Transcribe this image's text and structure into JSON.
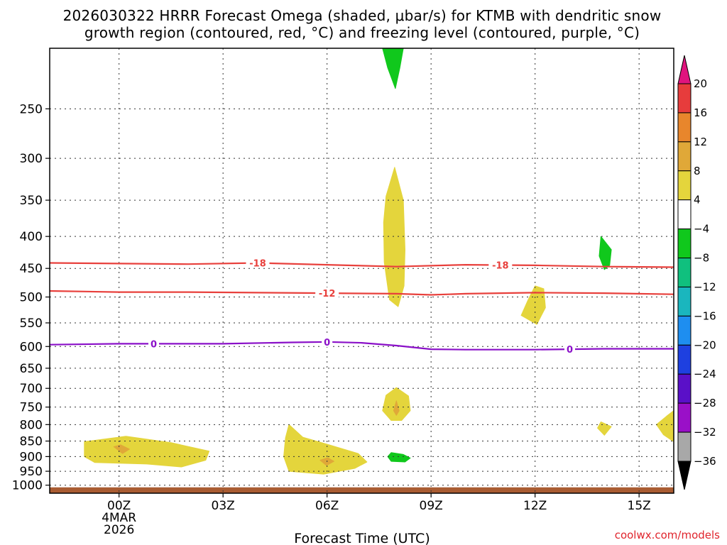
{
  "chart_data": {
    "type": "time-height-cross-section",
    "title_line1": "2026030322 HRRR Forecast Omega (shaded, μbar/s) for KTMB with dendritic snow",
    "title_line2": "growth region (contoured, red, °C) and freezing level (contoured, purple, °C)",
    "xlabel": "Forecast Time (UTC)",
    "credit": "coolwx.com/models",
    "x_range_hours": [
      -2,
      16
    ],
    "y_range_hPa": [
      200,
      1030
    ],
    "x_ticks": [
      {
        "hour": 0,
        "lines": [
          "00Z",
          "4MAR",
          "2026"
        ]
      },
      {
        "hour": 3,
        "lines": [
          "03Z"
        ]
      },
      {
        "hour": 6,
        "lines": [
          "06Z"
        ]
      },
      {
        "hour": 9,
        "lines": [
          "09Z"
        ]
      },
      {
        "hour": 12,
        "lines": [
          "12Z"
        ]
      },
      {
        "hour": 15,
        "lines": [
          "15Z"
        ]
      }
    ],
    "y_ticks": [
      {
        "p": 250,
        "label": "250"
      },
      {
        "p": 300,
        "label": "300"
      },
      {
        "p": 350,
        "label": "350"
      },
      {
        "p": 400,
        "label": "400"
      },
      {
        "p": 450,
        "label": "450"
      },
      {
        "p": 500,
        "label": "500"
      },
      {
        "p": 550,
        "label": "550"
      },
      {
        "p": 600,
        "label": "600"
      },
      {
        "p": 650,
        "label": "650"
      },
      {
        "p": 700,
        "label": "700"
      },
      {
        "p": 750,
        "label": "750"
      },
      {
        "p": 800,
        "label": "800"
      },
      {
        "p": 850,
        "label": "850"
      },
      {
        "p": 900,
        "label": "900"
      },
      {
        "p": 950,
        "label": "950"
      },
      {
        "p": 1000,
        "label": "1000"
      }
    ],
    "colorbar": {
      "bins": [
        {
          "from": 16,
          "to": 20,
          "color": "#e73c3c"
        },
        {
          "from": 12,
          "to": 16,
          "color": "#e8862c"
        },
        {
          "from": 8,
          "to": 12,
          "color": "#e0a838"
        },
        {
          "from": 4,
          "to": 8,
          "color": "#e4d53c"
        },
        {
          "from": -4,
          "to": 4,
          "color": "#ffffff"
        },
        {
          "from": -8,
          "to": -4,
          "color": "#10c81c"
        },
        {
          "from": -12,
          "to": -8,
          "color": "#10c07e"
        },
        {
          "from": -16,
          "to": -12,
          "color": "#1ab6be"
        },
        {
          "from": -20,
          "to": -16,
          "color": "#1e8ef0"
        },
        {
          "from": -24,
          "to": -20,
          "color": "#1e40e0"
        },
        {
          "from": -28,
          "to": -24,
          "color": "#5a10c8"
        },
        {
          "from": -32,
          "to": -28,
          "color": "#9a10c8"
        },
        {
          "from": -36,
          "to": -32,
          "color": "#a8a8a8"
        }
      ],
      "over_color": "#e0147e",
      "under_color": "#000000",
      "tick_labels": [
        "20",
        "16",
        "12",
        "8",
        "4",
        "−4",
        "−8",
        "−12",
        "−16",
        "−20",
        "−24",
        "−28",
        "−32",
        "−36"
      ]
    },
    "contours": [
      {
        "name": "dgz-minus18",
        "value_label": "-18",
        "color": "#e8403c",
        "points": [
          [
            -2,
            441
          ],
          [
            0,
            442
          ],
          [
            2,
            443
          ],
          [
            4,
            441
          ],
          [
            6,
            444
          ],
          [
            8,
            447
          ],
          [
            10,
            444
          ],
          [
            12,
            445
          ],
          [
            14,
            447
          ],
          [
            16,
            448
          ]
        ],
        "label_hours": [
          4,
          11
        ]
      },
      {
        "name": "dgz-minus12",
        "value_label": "-12",
        "color": "#e8403c",
        "points": [
          [
            -2,
            489
          ],
          [
            0,
            491
          ],
          [
            2,
            491
          ],
          [
            4,
            492
          ],
          [
            6,
            493
          ],
          [
            8,
            494
          ],
          [
            9,
            496
          ],
          [
            10,
            494
          ],
          [
            12,
            492
          ],
          [
            14,
            493
          ],
          [
            16,
            495
          ]
        ],
        "label_hours": [
          6
        ]
      },
      {
        "name": "freezing-level",
        "value_label": "0",
        "color": "#8a10c8",
        "points": [
          [
            -2,
            596
          ],
          [
            0,
            594
          ],
          [
            1,
            594
          ],
          [
            3,
            594
          ],
          [
            5,
            591
          ],
          [
            6,
            590
          ],
          [
            7,
            592
          ],
          [
            8,
            598
          ],
          [
            9,
            606
          ],
          [
            10,
            607
          ],
          [
            12,
            607
          ],
          [
            13,
            606
          ],
          [
            14,
            605
          ],
          [
            16,
            605
          ]
        ],
        "label_hours": [
          1,
          6,
          13
        ]
      }
    ],
    "omega_regions": [
      {
        "name": "green-top",
        "color": "#10c81c",
        "points": [
          [
            7.6,
            200
          ],
          [
            8.2,
            200
          ],
          [
            8.1,
            215
          ],
          [
            7.97,
            232
          ],
          [
            7.75,
            215
          ]
        ]
      },
      {
        "name": "yellow-mid-column",
        "color": "#e4d53c",
        "points": [
          [
            7.95,
            310
          ],
          [
            8.2,
            350
          ],
          [
            8.25,
            420
          ],
          [
            8.22,
            480
          ],
          [
            8.05,
            518
          ],
          [
            7.8,
            505
          ],
          [
            7.65,
            440
          ],
          [
            7.63,
            380
          ],
          [
            7.7,
            345
          ]
        ]
      },
      {
        "name": "green-right-upper",
        "color": "#10c81c",
        "points": [
          [
            13.9,
            400
          ],
          [
            14.2,
            420
          ],
          [
            14.15,
            445
          ],
          [
            14.0,
            452
          ],
          [
            13.85,
            430
          ]
        ]
      },
      {
        "name": "yellow-right-mid",
        "color": "#e4d53c",
        "points": [
          [
            12.0,
            480
          ],
          [
            12.25,
            485
          ],
          [
            12.3,
            520
          ],
          [
            12.05,
            553
          ],
          [
            11.6,
            535
          ],
          [
            11.8,
            505
          ]
        ]
      },
      {
        "name": "yellow-low-mid",
        "color": "#e4d53c",
        "points": [
          [
            8.0,
            698
          ],
          [
            8.35,
            720
          ],
          [
            8.4,
            760
          ],
          [
            8.15,
            788
          ],
          [
            7.85,
            788
          ],
          [
            7.6,
            760
          ],
          [
            7.7,
            718
          ]
        ]
      },
      {
        "name": "orange-low-mid",
        "color": "#e0a838",
        "points": [
          [
            8.0,
            733
          ],
          [
            8.08,
            760
          ],
          [
            8.0,
            773
          ],
          [
            7.92,
            760
          ]
        ]
      },
      {
        "name": "green-low-mid",
        "color": "#10c81c",
        "points": [
          [
            7.85,
            887
          ],
          [
            8.2,
            893
          ],
          [
            8.4,
            905
          ],
          [
            8.25,
            918
          ],
          [
            7.85,
            916
          ],
          [
            7.75,
            900
          ]
        ]
      },
      {
        "name": "yellow-right-small",
        "color": "#e4d53c",
        "points": [
          [
            13.9,
            792
          ],
          [
            14.2,
            806
          ],
          [
            14.0,
            832
          ],
          [
            13.8,
            810
          ]
        ]
      },
      {
        "name": "yellow-right-edge",
        "color": "#e4d53c",
        "points": [
          [
            16.0,
            760
          ],
          [
            16.0,
            852
          ],
          [
            15.7,
            830
          ],
          [
            15.5,
            800
          ],
          [
            15.8,
            775
          ]
        ]
      },
      {
        "name": "yellow-left-blob",
        "color": "#e4d53c",
        "points": [
          [
            -1.0,
            852
          ],
          [
            0.2,
            835
          ],
          [
            1.5,
            855
          ],
          [
            2.6,
            882
          ],
          [
            2.5,
            912
          ],
          [
            1.8,
            935
          ],
          [
            0.8,
            925
          ],
          [
            -0.7,
            920
          ],
          [
            -1.0,
            900
          ]
        ]
      },
      {
        "name": "orange-left",
        "color": "#e0a838",
        "points": [
          [
            -0.15,
            868
          ],
          [
            0.05,
            862
          ],
          [
            0.3,
            876
          ],
          [
            0.1,
            890
          ]
        ]
      },
      {
        "name": "yellow-center-blob",
        "color": "#e4d53c",
        "points": [
          [
            4.9,
            800
          ],
          [
            5.3,
            838
          ],
          [
            6.0,
            860
          ],
          [
            6.9,
            890
          ],
          [
            7.15,
            918
          ],
          [
            6.8,
            940
          ],
          [
            5.9,
            960
          ],
          [
            4.9,
            950
          ],
          [
            4.75,
            900
          ],
          [
            4.8,
            840
          ]
        ]
      },
      {
        "name": "orange-center",
        "color": "#e0a838",
        "points": [
          [
            5.8,
            912
          ],
          [
            6.02,
            904
          ],
          [
            6.2,
            916
          ],
          [
            5.98,
            930
          ]
        ]
      }
    ],
    "terrain_band": {
      "color": "#a95c32",
      "from_p": 1008,
      "to_p": 1030
    }
  }
}
